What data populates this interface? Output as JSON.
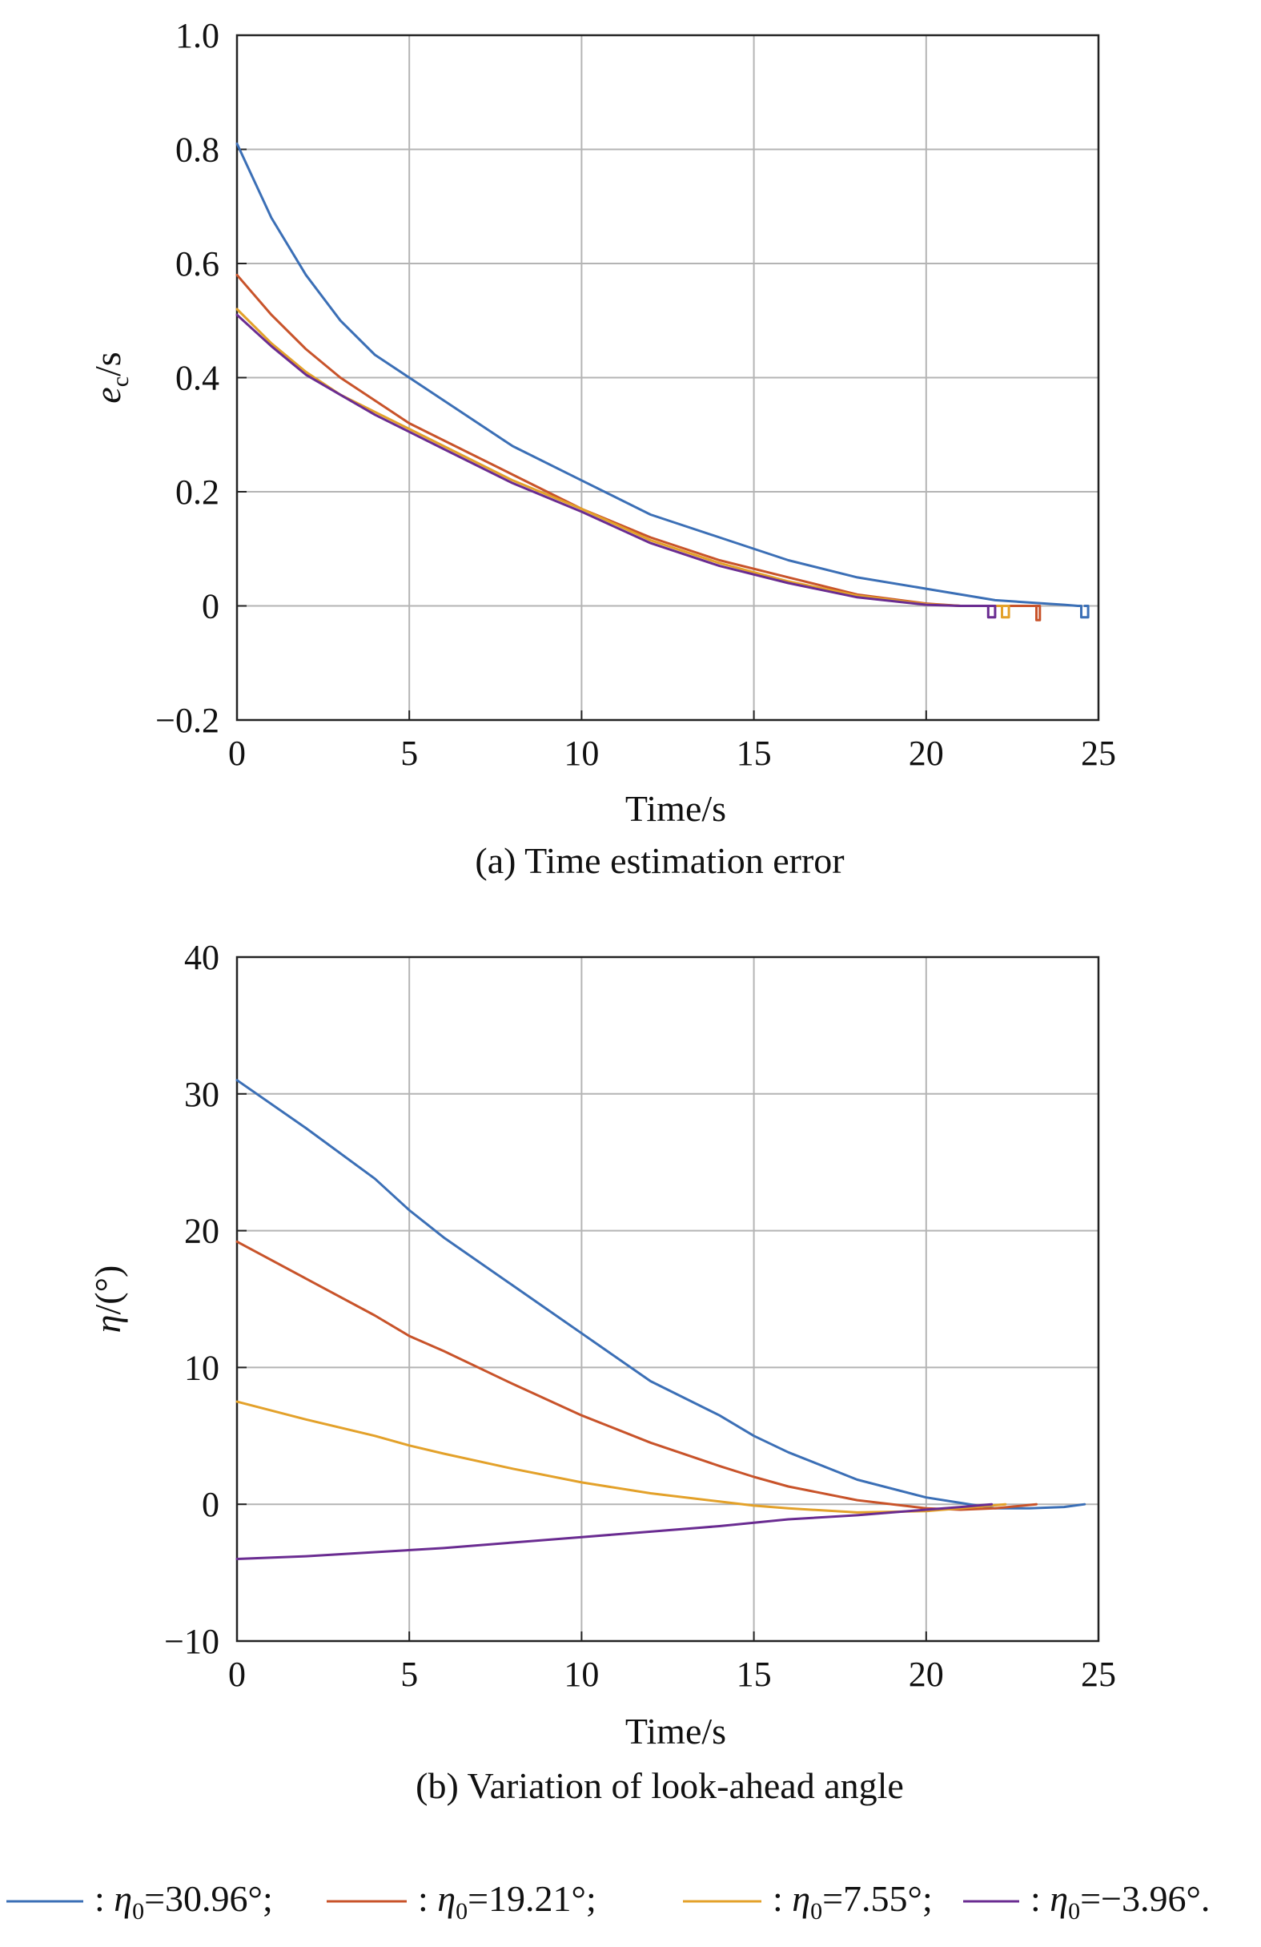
{
  "colors": {
    "series": [
      "#3B6FB6",
      "#C8532A",
      "#E3A12A",
      "#6A2C91"
    ],
    "grid": "#b4b4b4",
    "axis": "#222222"
  },
  "chart_data": [
    {
      "id": "a",
      "type": "line",
      "caption": "(a) Time estimation error",
      "xlabel": "Time/s",
      "ylabel_main": "e",
      "ylabel_sub": "c",
      "ylabel_unit": "/s",
      "xlim": [
        0,
        25
      ],
      "ylim": [
        -0.2,
        1.0
      ],
      "xticks": [
        0,
        5,
        10,
        15,
        20,
        25
      ],
      "xtick_labels": [
        "0",
        "5",
        "10",
        "15",
        "20",
        "25"
      ],
      "yticks": [
        -0.2,
        0,
        0.2,
        0.4,
        0.6,
        0.8,
        1.0
      ],
      "ytick_labels": [
        "−0.2",
        "0",
        "0.2",
        "0.4",
        "0.6",
        "0.8",
        "1.0"
      ],
      "grid": true,
      "series": [
        {
          "x": [
            0,
            1,
            2,
            3,
            4,
            5,
            6,
            8,
            10,
            12,
            14,
            16,
            18,
            20,
            22,
            24,
            24.4,
            24.5,
            24.5,
            24.7,
            24.7,
            24.6
          ],
          "y": [
            0.81,
            0.68,
            0.58,
            0.5,
            0.44,
            0.4,
            0.36,
            0.28,
            0.22,
            0.16,
            0.12,
            0.08,
            0.05,
            0.03,
            0.01,
            0.002,
            0.0,
            0.0,
            -0.02,
            -0.02,
            0.0,
            0.0
          ]
        },
        {
          "x": [
            0,
            1,
            2,
            3,
            4,
            5,
            6,
            8,
            10,
            12,
            14,
            16,
            18,
            20,
            21,
            23.2,
            23.2,
            23.3,
            23.3,
            23.1
          ],
          "y": [
            0.58,
            0.51,
            0.45,
            0.4,
            0.36,
            0.32,
            0.29,
            0.23,
            0.17,
            0.12,
            0.08,
            0.05,
            0.02,
            0.004,
            0.0,
            0.0,
            -0.025,
            -0.025,
            0.0,
            0.0
          ]
        },
        {
          "x": [
            0,
            1,
            2,
            3,
            4,
            5,
            6,
            8,
            10,
            12,
            14,
            16,
            18,
            20,
            21,
            22.2,
            22.2,
            22.4,
            22.4,
            22.2
          ],
          "y": [
            0.52,
            0.46,
            0.41,
            0.37,
            0.34,
            0.31,
            0.28,
            0.22,
            0.17,
            0.115,
            0.075,
            0.043,
            0.018,
            0.003,
            0.0,
            0.0,
            -0.02,
            -0.02,
            0.0,
            0.0
          ]
        },
        {
          "x": [
            0,
            1,
            2,
            3,
            4,
            5,
            6,
            8,
            10,
            12,
            14,
            16,
            18,
            20,
            21,
            21.8,
            21.8,
            22.0,
            22.0,
            21.8
          ],
          "y": [
            0.51,
            0.455,
            0.405,
            0.37,
            0.335,
            0.305,
            0.275,
            0.215,
            0.165,
            0.11,
            0.07,
            0.04,
            0.015,
            0.002,
            0.0,
            0.0,
            -0.02,
            -0.02,
            0.0,
            0.0
          ]
        }
      ]
    },
    {
      "id": "b",
      "type": "line",
      "caption": "(b) Variation of look-ahead angle",
      "xlabel": "Time/s",
      "ylabel_main": "η",
      "ylabel_sub": "",
      "ylabel_unit": "/(°)",
      "xlim": [
        0,
        25
      ],
      "ylim": [
        -10,
        40
      ],
      "xticks": [
        0,
        5,
        10,
        15,
        20,
        25
      ],
      "xtick_labels": [
        "0",
        "5",
        "10",
        "15",
        "20",
        "25"
      ],
      "yticks": [
        -10,
        0,
        10,
        20,
        30,
        40
      ],
      "ytick_labels": [
        "−10",
        "0",
        "10",
        "20",
        "30",
        "40"
      ],
      "grid": true,
      "series": [
        {
          "x": [
            0,
            2,
            4,
            5,
            6,
            8,
            10,
            12,
            14,
            15,
            16,
            18,
            20,
            21,
            22,
            23,
            24,
            24.6
          ],
          "y": [
            31.0,
            27.5,
            23.8,
            21.5,
            19.5,
            16.0,
            12.5,
            9.0,
            6.5,
            5.0,
            3.8,
            1.8,
            0.5,
            0.1,
            -0.3,
            -0.3,
            -0.2,
            0.0
          ]
        },
        {
          "x": [
            0,
            2,
            4,
            5,
            6,
            8,
            10,
            12,
            14,
            15,
            16,
            18,
            20,
            21,
            22,
            23.2
          ],
          "y": [
            19.2,
            16.5,
            13.8,
            12.3,
            11.2,
            8.8,
            6.5,
            4.5,
            2.8,
            2.0,
            1.3,
            0.3,
            -0.3,
            -0.4,
            -0.3,
            0.0
          ]
        },
        {
          "x": [
            0,
            2,
            4,
            5,
            6,
            8,
            10,
            12,
            14,
            15,
            16,
            18,
            20,
            21,
            22.3
          ],
          "y": [
            7.5,
            6.2,
            5.0,
            4.3,
            3.7,
            2.6,
            1.6,
            0.8,
            0.2,
            -0.1,
            -0.3,
            -0.6,
            -0.5,
            -0.3,
            0.0
          ]
        },
        {
          "x": [
            0,
            2,
            4,
            6,
            8,
            10,
            12,
            14,
            16,
            18,
            20,
            21,
            21.9
          ],
          "y": [
            -4.0,
            -3.8,
            -3.5,
            -3.2,
            -2.8,
            -2.4,
            -2.0,
            -1.6,
            -1.1,
            -0.8,
            -0.4,
            -0.2,
            0.0
          ]
        }
      ]
    }
  ],
  "legend": [
    {
      "sep": ": ",
      "sym": "η",
      "sub": "0",
      "value": "=30.96°;"
    },
    {
      "sep": ": ",
      "sym": "η",
      "sub": "0",
      "value": "=19.21°;"
    },
    {
      "sep": ": ",
      "sym": "η",
      "sub": "0",
      "value": "=7.55°;"
    },
    {
      "sep": ": ",
      "sym": "η",
      "sub": "0",
      "value": "=−3.96°."
    }
  ]
}
